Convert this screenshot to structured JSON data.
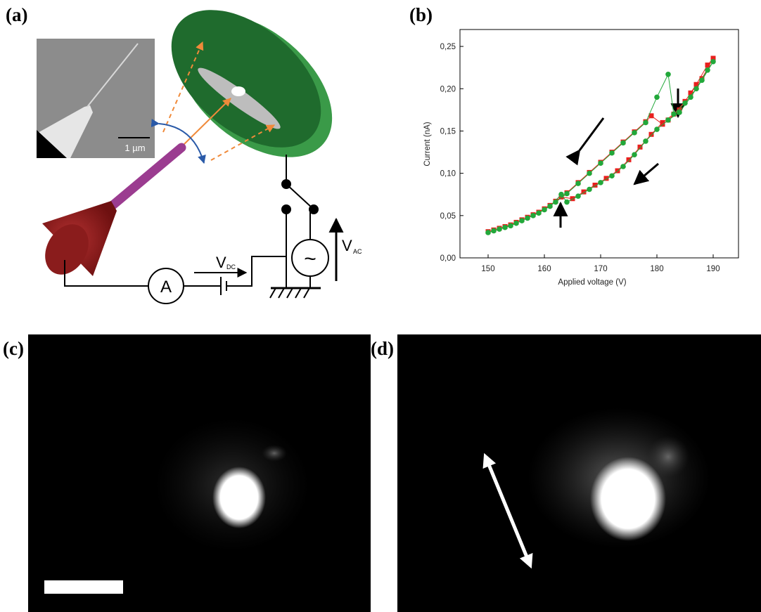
{
  "panels": {
    "a": {
      "label": "(a)",
      "scale_label": "1 µm",
      "ammeter": "A",
      "vdc": "V",
      "vdc_sub": "DC",
      "vac": "V",
      "vac_sub": "AC",
      "source": "~"
    },
    "b": {
      "label": "(b)"
    },
    "c": {
      "label": "(c)"
    },
    "d": {
      "label": "(d)"
    }
  },
  "chart_data": {
    "type": "line",
    "x_label": "Applied voltage (V)",
    "y_label": "Current (nA)",
    "xlim": [
      145,
      194.5
    ],
    "xticks": [
      150,
      160,
      170,
      180,
      190
    ],
    "ylim": [
      0,
      0.27
    ],
    "yticks": [
      {
        "value": 0,
        "label": "0,00"
      },
      {
        "value": 0.05,
        "label": "0,05"
      },
      {
        "value": 0.1,
        "label": "0,10"
      },
      {
        "value": 0.15,
        "label": "0,15"
      },
      {
        "value": 0.2,
        "label": "0,20"
      },
      {
        "value": 0.25,
        "label": "0,25"
      }
    ],
    "series": [
      {
        "color": "#e8201e",
        "marker": "square",
        "x": [
          150,
          152,
          154,
          156,
          158,
          160,
          162,
          164,
          166,
          168,
          170,
          172,
          174,
          176,
          178,
          179,
          181,
          182,
          184,
          186,
          188,
          190,
          189,
          187,
          185,
          183,
          181,
          179,
          177,
          175,
          173,
          171,
          169,
          167,
          165,
          163,
          161,
          159,
          157,
          155,
          153,
          151
        ],
        "values": [
          0.031,
          0.035,
          0.039,
          0.045,
          0.051,
          0.058,
          0.067,
          0.077,
          0.089,
          0.101,
          0.113,
          0.125,
          0.137,
          0.149,
          0.161,
          0.168,
          0.158,
          0.163,
          0.175,
          0.195,
          0.212,
          0.236,
          0.228,
          0.205,
          0.185,
          0.17,
          0.16,
          0.146,
          0.131,
          0.116,
          0.103,
          0.094,
          0.086,
          0.078,
          0.07,
          0.072,
          0.062,
          0.054,
          0.048,
          0.042,
          0.037,
          0.033
        ]
      },
      {
        "color": "#22a83a",
        "marker": "circle",
        "x": [
          150,
          152,
          154,
          156,
          158,
          160,
          162,
          164,
          166,
          168,
          170,
          172,
          174,
          176,
          178,
          180,
          182,
          183,
          185,
          187,
          189,
          190,
          188,
          186,
          184,
          182,
          180,
          178,
          176,
          174,
          172,
          170,
          168,
          166,
          164,
          163,
          161,
          159,
          157,
          155,
          153,
          151
        ],
        "values": [
          0.03,
          0.034,
          0.038,
          0.044,
          0.05,
          0.057,
          0.066,
          0.076,
          0.088,
          0.1,
          0.112,
          0.124,
          0.136,
          0.148,
          0.16,
          0.19,
          0.217,
          0.17,
          0.183,
          0.2,
          0.222,
          0.232,
          0.21,
          0.19,
          0.172,
          0.163,
          0.152,
          0.138,
          0.122,
          0.108,
          0.097,
          0.089,
          0.081,
          0.073,
          0.066,
          0.075,
          0.061,
          0.053,
          0.047,
          0.041,
          0.036,
          0.032
        ]
      }
    ]
  }
}
